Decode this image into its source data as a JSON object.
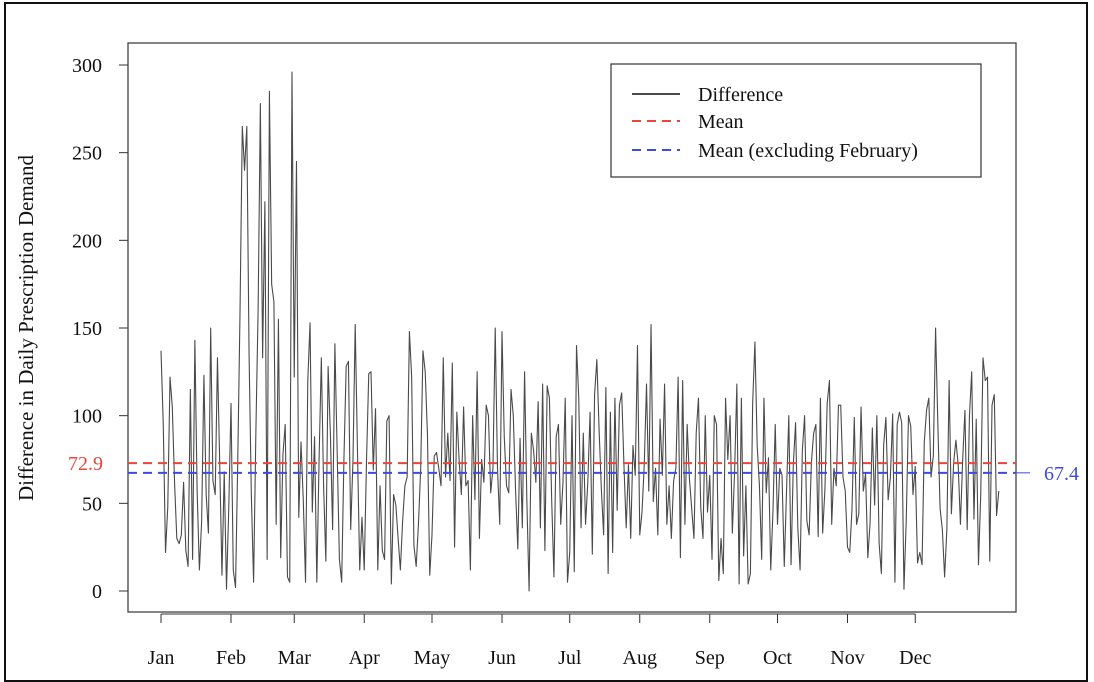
{
  "chart_data": {
    "type": "line",
    "title": "",
    "xlabel": "",
    "ylabel": "Difference in Daily Prescription Demand",
    "ylim": [
      0,
      300
    ],
    "yticks": [
      0,
      50,
      100,
      150,
      200,
      250,
      300
    ],
    "xlim": [
      1,
      365
    ],
    "month_starts": [
      1,
      32,
      60,
      91,
      121,
      152,
      182,
      213,
      244,
      274,
      305,
      335
    ],
    "month_labels": [
      "Jan",
      "Feb",
      "Mar",
      "Apr",
      "May",
      "Jun",
      "Jul",
      "Aug",
      "Sep",
      "Oct",
      "Nov",
      "Dec"
    ],
    "legend_position": "top-right",
    "grid": false,
    "series": [
      {
        "name": "Difference",
        "color": "#4a4a4a",
        "style": "solid",
        "values": [
          137,
          95,
          22,
          48,
          122,
          105,
          62,
          30,
          27,
          32,
          62,
          23,
          14,
          115,
          18,
          143,
          57,
          12,
          40,
          123,
          55,
          33,
          150,
          63,
          55,
          133,
          73,
          9,
          68,
          1,
          47,
          107,
          12,
          2,
          75,
          160,
          265,
          240,
          265,
          135,
          55,
          5,
          90,
          160,
          278,
          133,
          222,
          18,
          285,
          175,
          165,
          38,
          155,
          19,
          78,
          95,
          8,
          5,
          296,
          122,
          245,
          42,
          85,
          52,
          5,
          120,
          153,
          45,
          88,
          5,
          75,
          133,
          60,
          17,
          128,
          90,
          35,
          141,
          80,
          18,
          5,
          75,
          128,
          131,
          35,
          74,
          152,
          80,
          12,
          42,
          12,
          74,
          124,
          125,
          69,
          104,
          12,
          60,
          23,
          18,
          97,
          100,
          4,
          55,
          49,
          30,
          12,
          40,
          60,
          65,
          148,
          122,
          26,
          14,
          38,
          70,
          137,
          125,
          89,
          9,
          32,
          77,
          79,
          70,
          60,
          133,
          65,
          90,
          63,
          130,
          25,
          102,
          75,
          55,
          105,
          60,
          63,
          12,
          100,
          52,
          125,
          30,
          75,
          62,
          106,
          100,
          56,
          70,
          150,
          70,
          38,
          148,
          88,
          60,
          56,
          115,
          100,
          58,
          24,
          87,
          36,
          125,
          52,
          0,
          90,
          80,
          62,
          108,
          36,
          118,
          23,
          117,
          110,
          52,
          8,
          88,
          95,
          38,
          62,
          110,
          5,
          22,
          100,
          11,
          140,
          110,
          36,
          90,
          38,
          62,
          102,
          21,
          112,
          132,
          92,
          58,
          32,
          116,
          10,
          102,
          22,
          110,
          46,
          106,
          113,
          72,
          36,
          72,
          30,
          83,
          66,
          140,
          32,
          45,
          72,
          118,
          57,
          152,
          51,
          70,
          32,
          98,
          66,
          118,
          38,
          60,
          30,
          63,
          70,
          122,
          19,
          120,
          38,
          95,
          64,
          47,
          30,
          90,
          110,
          48,
          30,
          100,
          45,
          66,
          18,
          100,
          95,
          6,
          30,
          10,
          110,
          75,
          100,
          33,
          68,
          118,
          4,
          110,
          20,
          60,
          4,
          10,
          107,
          142,
          83,
          60,
          18,
          110,
          56,
          76,
          12,
          46,
          95,
          38,
          70,
          66,
          14,
          57,
          100,
          15,
          72,
          96,
          36,
          12,
          80,
          100,
          40,
          32,
          73,
          90,
          95,
          31,
          110,
          33,
          58,
          107,
          120,
          38,
          70,
          60,
          106,
          106,
          65,
          57,
          25,
          22,
          47,
          99,
          38,
          44,
          105,
          57,
          67,
          19,
          39,
          93,
          49,
          100,
          27,
          10,
          83,
          99,
          52,
          65,
          101,
          5,
          95,
          102,
          96,
          1,
          40,
          100,
          94,
          55,
          71,
          16,
          22,
          15,
          85,
          103,
          110,
          65,
          77,
          150,
          95,
          47,
          35,
          8,
          35,
          120,
          44,
          73,
          86,
          72,
          38,
          75,
          103,
          35,
          100,
          125,
          41,
          98,
          15,
          55,
          133,
          120,
          122,
          17,
          106,
          112,
          43,
          57
        ]
      },
      {
        "name": "Mean",
        "color": "#e8453c",
        "style": "dashed",
        "value": 72.9,
        "label": "72.9"
      },
      {
        "name": "Mean (excluding February)",
        "color": "#3f4bdb",
        "style": "dashed",
        "value": 67.4,
        "label": "67.4"
      }
    ]
  }
}
